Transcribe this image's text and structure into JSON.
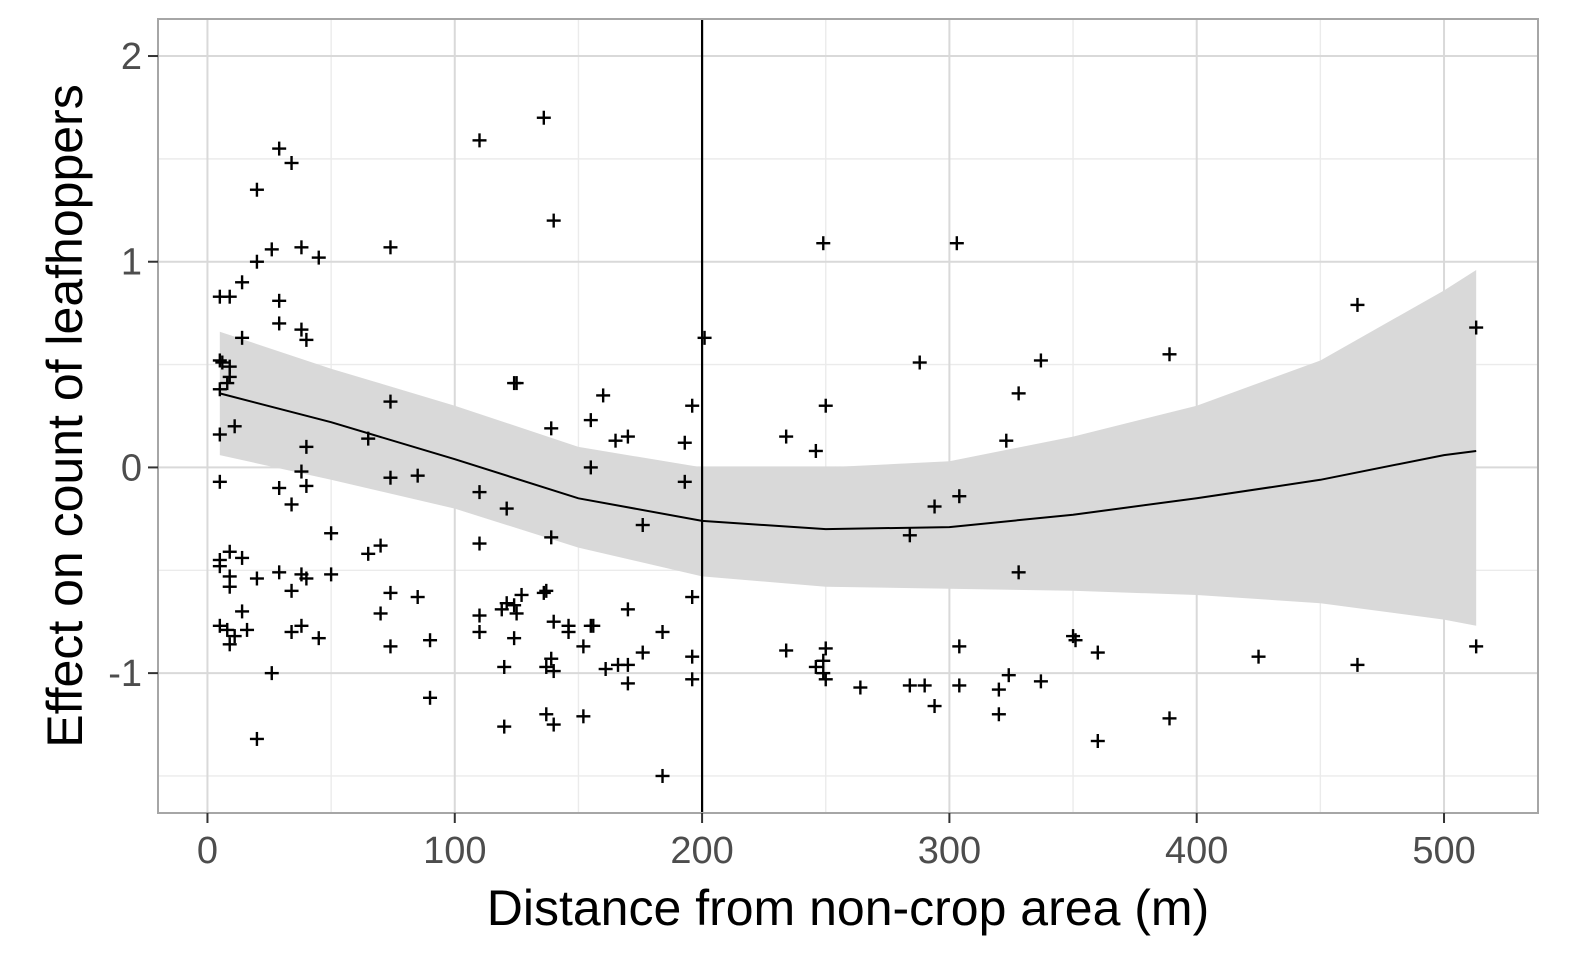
{
  "chart_data": {
    "type": "scatter",
    "xlabel": "Distance from non-crop area (m)",
    "ylabel": "Effect on count of leafhoppers",
    "xlim": [
      -20,
      538
    ],
    "ylim": [
      -1.68,
      2.18
    ],
    "x_ticks": [
      0,
      100,
      200,
      300,
      400,
      500
    ],
    "x_tick_labels": [
      "0",
      "100",
      "200",
      "300",
      "400",
      "500"
    ],
    "y_ticks": [
      -1,
      0,
      1,
      2
    ],
    "y_tick_labels": [
      "-1",
      "0",
      "1",
      "2"
    ],
    "grid": true,
    "legend": "none",
    "marker": "plus",
    "vertical_line_x": 200,
    "points": [
      [
        5,
        0.83
      ],
      [
        9,
        0.83
      ],
      [
        14,
        0.9
      ],
      [
        20,
        1.0
      ],
      [
        20,
        1.35
      ],
      [
        26,
        1.06
      ],
      [
        29,
        1.55
      ],
      [
        34,
        1.48
      ],
      [
        38,
        1.07
      ],
      [
        45,
        1.02
      ],
      [
        29,
        0.81
      ],
      [
        29,
        0.7
      ],
      [
        38,
        0.67
      ],
      [
        40,
        0.62
      ],
      [
        14,
        0.63
      ],
      [
        5,
        0.52
      ],
      [
        6,
        0.51
      ],
      [
        9,
        0.49
      ],
      [
        9,
        0.44
      ],
      [
        8,
        0.41
      ],
      [
        5,
        0.38
      ],
      [
        11,
        0.2
      ],
      [
        5,
        0.16
      ],
      [
        5,
        -0.07
      ],
      [
        40,
        0.1
      ],
      [
        38,
        -0.02
      ],
      [
        29,
        -0.1
      ],
      [
        40,
        -0.09
      ],
      [
        34,
        -0.18
      ],
      [
        50,
        -0.32
      ],
      [
        5,
        -0.45
      ],
      [
        5,
        -0.48
      ],
      [
        9,
        -0.41
      ],
      [
        14,
        -0.44
      ],
      [
        9,
        -0.53
      ],
      [
        9,
        -0.58
      ],
      [
        20,
        -0.54
      ],
      [
        29,
        -0.51
      ],
      [
        34,
        -0.6
      ],
      [
        40,
        -0.54
      ],
      [
        38,
        -0.52
      ],
      [
        50,
        -0.52
      ],
      [
        14,
        -0.7
      ],
      [
        5,
        -0.77
      ],
      [
        8,
        -0.79
      ],
      [
        9,
        -0.86
      ],
      [
        11,
        -0.82
      ],
      [
        16,
        -0.79
      ],
      [
        34,
        -0.8
      ],
      [
        38,
        -0.77
      ],
      [
        45,
        -0.83
      ],
      [
        26,
        -1.0
      ],
      [
        20,
        -1.32
      ],
      [
        74,
        1.07
      ],
      [
        74,
        0.32
      ],
      [
        65,
        0.14
      ],
      [
        74,
        -0.05
      ],
      [
        85,
        -0.04
      ],
      [
        65,
        -0.42
      ],
      [
        70,
        -0.38
      ],
      [
        70,
        -0.71
      ],
      [
        74,
        -0.61
      ],
      [
        85,
        -0.63
      ],
      [
        74,
        -0.87
      ],
      [
        90,
        -0.84
      ],
      [
        90,
        -1.12
      ],
      [
        110,
        1.59
      ],
      [
        136,
        1.7
      ],
      [
        140,
        1.2
      ],
      [
        125,
        0.41
      ],
      [
        124,
        0.41
      ],
      [
        139,
        0.19
      ],
      [
        110,
        -0.12
      ],
      [
        121,
        -0.2
      ],
      [
        110,
        -0.37
      ],
      [
        139,
        -0.34
      ],
      [
        110,
        -0.72
      ],
      [
        110,
        -0.8
      ],
      [
        119,
        -0.69
      ],
      [
        121,
        -0.66
      ],
      [
        124,
        -0.67
      ],
      [
        127,
        -0.62
      ],
      [
        125,
        -0.71
      ],
      [
        124,
        -0.83
      ],
      [
        120,
        -0.97
      ],
      [
        120,
        -1.26
      ],
      [
        137,
        -0.6
      ],
      [
        136,
        -0.61
      ],
      [
        140,
        -0.75
      ],
      [
        146,
        -0.77
      ],
      [
        146,
        -0.8
      ],
      [
        139,
        -0.93
      ],
      [
        137,
        -0.97
      ],
      [
        140,
        -0.99
      ],
      [
        137,
        -1.2
      ],
      [
        140,
        -1.25
      ],
      [
        155,
        0.23
      ],
      [
        160,
        0.35
      ],
      [
        165,
        0.13
      ],
      [
        170,
        0.15
      ],
      [
        155,
        0.0
      ],
      [
        176,
        -0.28
      ],
      [
        156,
        -0.77
      ],
      [
        155,
        -0.77
      ],
      [
        152,
        -0.87
      ],
      [
        161,
        -0.98
      ],
      [
        166,
        -0.96
      ],
      [
        170,
        -0.96
      ],
      [
        170,
        -1.05
      ],
      [
        170,
        -0.69
      ],
      [
        176,
        -0.9
      ],
      [
        184,
        -0.8
      ],
      [
        152,
        -1.21
      ],
      [
        184,
        -1.5
      ],
      [
        196,
        0.3
      ],
      [
        193,
        0.12
      ],
      [
        193,
        -0.07
      ],
      [
        196,
        -0.63
      ],
      [
        196,
        -0.92
      ],
      [
        196,
        -1.03
      ],
      [
        201,
        0.63
      ],
      [
        234,
        0.15
      ],
      [
        246,
        0.08
      ],
      [
        249,
        1.09
      ],
      [
        250,
        0.3
      ],
      [
        234,
        -0.89
      ],
      [
        246,
        -0.97
      ],
      [
        249,
        -0.94
      ],
      [
        250,
        -0.88
      ],
      [
        249,
        -1.0
      ],
      [
        250,
        -1.03
      ],
      [
        264,
        -1.07
      ],
      [
        288,
        0.51
      ],
      [
        303,
        1.09
      ],
      [
        304,
        -0.14
      ],
      [
        294,
        -0.19
      ],
      [
        284,
        -0.33
      ],
      [
        284,
        -1.06
      ],
      [
        290,
        -1.06
      ],
      [
        294,
        -1.16
      ],
      [
        304,
        -0.87
      ],
      [
        304,
        -1.06
      ],
      [
        323,
        0.13
      ],
      [
        328,
        0.36
      ],
      [
        337,
        0.52
      ],
      [
        328,
        -0.51
      ],
      [
        320,
        -1.08
      ],
      [
        324,
        -1.01
      ],
      [
        320,
        -1.2
      ],
      [
        337,
        -1.04
      ],
      [
        350,
        -0.82
      ],
      [
        351,
        -0.84
      ],
      [
        360,
        -0.9
      ],
      [
        360,
        -1.33
      ],
      [
        389,
        0.55
      ],
      [
        389,
        -1.22
      ],
      [
        425,
        -0.92
      ],
      [
        465,
        0.79
      ],
      [
        465,
        -0.96
      ],
      [
        513,
        0.68
      ],
      [
        513,
        -0.87
      ]
    ],
    "smooth_fit": {
      "x": [
        5,
        50,
        100,
        150,
        200,
        250,
        300,
        350,
        400,
        450,
        500,
        513
      ],
      "y": [
        0.36,
        0.22,
        0.04,
        -0.15,
        -0.26,
        -0.3,
        -0.29,
        -0.23,
        -0.15,
        -0.06,
        0.06,
        0.08
      ],
      "lo": [
        0.06,
        -0.06,
        -0.2,
        -0.39,
        -0.53,
        -0.58,
        -0.59,
        -0.6,
        -0.62,
        -0.66,
        -0.74,
        -0.77
      ],
      "hi": [
        0.66,
        0.48,
        0.3,
        0.1,
        0.0,
        0.0,
        0.03,
        0.15,
        0.3,
        0.52,
        0.86,
        0.96
      ]
    }
  }
}
